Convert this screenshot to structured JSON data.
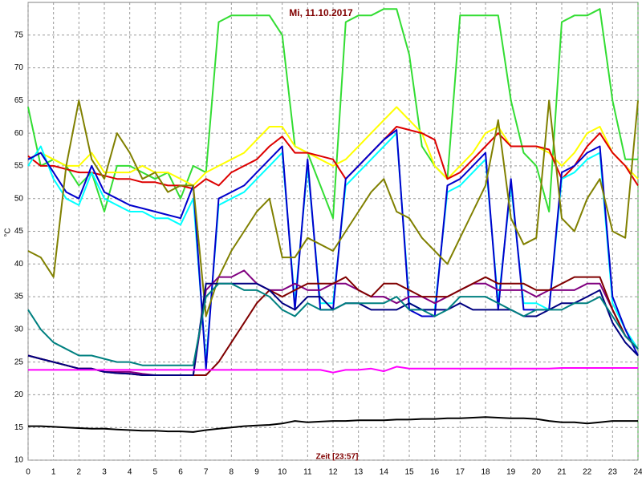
{
  "chart_data": {
    "type": "line",
    "title": "Mi, 11.10.2017",
    "x_label": "Zeit [23:57]",
    "y_label": "°C",
    "xlim": [
      0,
      24
    ],
    "ylim": [
      10,
      80
    ],
    "xticks": [
      0,
      1,
      2,
      3,
      4,
      5,
      6,
      7,
      8,
      9,
      10,
      11,
      12,
      13,
      14,
      15,
      16,
      17,
      18,
      19,
      20,
      21,
      22,
      23,
      24
    ],
    "yticks": [
      10,
      15,
      20,
      25,
      30,
      35,
      40,
      45,
      50,
      55,
      60,
      65,
      70,
      75
    ],
    "grid": true,
    "x": [
      0,
      0.5,
      1,
      1.5,
      2,
      2.5,
      3,
      3.5,
      4,
      4.5,
      5,
      5.5,
      6,
      6.5,
      7,
      7.5,
      8,
      8.5,
      9,
      9.5,
      10,
      10.5,
      11,
      11.5,
      12,
      12.5,
      13,
      13.5,
      14,
      14.5,
      15,
      15.5,
      16,
      16.5,
      17,
      17.5,
      18,
      18.5,
      19,
      19.5,
      20,
      20.5,
      21,
      21.5,
      22,
      22.5,
      23,
      23.5,
      24
    ],
    "series": [
      {
        "color": "#33dd33",
        "values": [
          64,
          55,
          56,
          55,
          52,
          54,
          48,
          55,
          55,
          54,
          53,
          54,
          50,
          55,
          54,
          77,
          78,
          78,
          78,
          78,
          75,
          58,
          57,
          52,
          47,
          77,
          78,
          78,
          79,
          79,
          72,
          58,
          55,
          53,
          78,
          78,
          78,
          78,
          65,
          57,
          55,
          48,
          77,
          78,
          78,
          79,
          65,
          56,
          56
        ]
      },
      {
        "color": "#ffff00",
        "values": [
          56,
          57,
          56,
          55,
          55,
          57,
          54,
          54,
          54,
          55,
          54,
          54,
          53,
          52,
          54,
          55,
          56,
          57,
          59,
          61,
          61,
          58,
          57,
          56,
          55,
          56,
          58,
          60,
          62,
          64,
          62,
          60,
          55,
          53,
          55,
          57,
          60,
          61,
          58,
          58,
          58,
          57,
          55,
          57,
          60,
          61,
          57,
          55,
          53
        ]
      },
      {
        "color": "#dd0000",
        "values": [
          56.5,
          55,
          55,
          54.5,
          54,
          54,
          53.5,
          53,
          53,
          52.5,
          52.5,
          52,
          52,
          51.5,
          53,
          52,
          54,
          55,
          56,
          58,
          59.5,
          57,
          57,
          56.5,
          56,
          53,
          55,
          57,
          59,
          61,
          60.5,
          60,
          59,
          53,
          54,
          56,
          58,
          60,
          58,
          58,
          58,
          57.5,
          53,
          55,
          58,
          60,
          57,
          55,
          52
        ]
      },
      {
        "color": "#00ffff",
        "values": [
          55,
          58,
          53,
          50,
          49,
          54,
          50,
          49,
          48,
          48,
          47,
          47,
          46,
          50,
          25,
          49,
          50,
          51,
          53,
          55,
          57,
          34,
          55,
          34,
          34,
          52,
          54,
          56,
          58,
          60,
          34,
          33,
          33,
          51,
          52,
          54,
          56,
          34,
          52,
          34,
          34,
          33,
          53,
          54,
          56,
          57,
          34,
          30,
          27
        ]
      },
      {
        "color": "#0000cc",
        "values": [
          56,
          57,
          54,
          51,
          50,
          55,
          51,
          50,
          49,
          48.5,
          48,
          47.5,
          47,
          52,
          24,
          50,
          51,
          52,
          54,
          56,
          58,
          33,
          56,
          33,
          33,
          53,
          55,
          57,
          59,
          60.5,
          33,
          32,
          32,
          52,
          53,
          55,
          57,
          33,
          53,
          33,
          33,
          33,
          54,
          55,
          57,
          58,
          35,
          30,
          26
        ]
      },
      {
        "color": "#808000",
        "values": [
          42,
          41,
          38,
          55,
          65,
          56,
          53,
          60,
          57,
          53,
          54,
          51,
          52,
          52,
          32,
          38,
          42,
          45,
          48,
          50,
          41,
          41,
          44,
          43,
          42,
          45,
          48,
          51,
          53,
          48,
          47,
          44,
          42,
          40,
          44,
          48,
          52,
          62,
          47,
          43,
          44,
          65,
          47,
          45,
          50,
          53,
          45,
          44,
          65
        ]
      },
      {
        "color": "#800080",
        "values": [
          26,
          25.5,
          25,
          24.5,
          24,
          24,
          23.5,
          23.5,
          23.5,
          23.2,
          23,
          23,
          23,
          23,
          36,
          38,
          38,
          39,
          37,
          36,
          36,
          37,
          36,
          36,
          37,
          37,
          36,
          35,
          35,
          34,
          35,
          35,
          34,
          35,
          36,
          37,
          37,
          36,
          36,
          36,
          35,
          36,
          36,
          36,
          37,
          37,
          33,
          29,
          27
        ]
      },
      {
        "color": "#800000",
        "values": [
          26,
          25.5,
          25,
          24.5,
          24,
          24,
          23.5,
          23.3,
          23.2,
          23,
          23,
          23,
          23,
          23,
          23,
          25,
          28,
          31,
          34,
          36,
          35,
          36,
          37,
          37,
          37,
          38,
          36,
          35,
          37,
          37,
          36,
          35,
          35,
          35,
          36,
          37,
          38,
          37,
          37,
          37,
          36,
          36,
          37,
          38,
          38,
          38,
          33,
          29,
          27
        ]
      },
      {
        "color": "#000080",
        "values": [
          26,
          25.5,
          25,
          24.5,
          24,
          24,
          23.5,
          23.3,
          23.2,
          23,
          23,
          23,
          23,
          23,
          37,
          37,
          37,
          37,
          37,
          36,
          34,
          33,
          35,
          35,
          33,
          34,
          34,
          33,
          33,
          33,
          34,
          33,
          33,
          33,
          34,
          33,
          33,
          33,
          33,
          32,
          32,
          33,
          34,
          34,
          35,
          36,
          31,
          28,
          26
        ]
      },
      {
        "color": "#008080",
        "values": [
          33,
          30,
          28,
          27,
          26,
          26,
          25.5,
          25,
          25,
          24.5,
          24.5,
          24.5,
          24.5,
          24.5,
          35,
          37,
          37,
          36,
          36,
          35,
          33,
          32,
          34,
          33,
          33,
          34,
          34,
          34,
          34,
          35,
          33,
          33,
          32,
          33,
          35,
          35,
          35,
          34,
          33,
          32,
          33,
          33,
          33,
          34,
          34,
          35,
          32,
          29,
          27
        ]
      },
      {
        "color": "#ff00ff",
        "values": [
          23.8,
          23.8,
          23.8,
          23.8,
          23.8,
          23.8,
          23.8,
          23.8,
          23.8,
          23.8,
          23.8,
          23.8,
          23.8,
          23.8,
          23.8,
          23.8,
          23.8,
          23.8,
          23.8,
          23.8,
          23.8,
          23.8,
          23.8,
          23.8,
          23.4,
          23.8,
          23.8,
          24,
          23.6,
          24.3,
          24,
          24,
          24,
          24,
          24,
          24,
          24,
          24,
          24,
          24,
          24,
          24,
          24.1,
          24.1,
          24.1,
          24.1,
          24.1,
          24.1,
          24.1
        ]
      },
      {
        "color": "#000000",
        "values": [
          15.2,
          15.2,
          15.1,
          15,
          14.9,
          14.8,
          14.8,
          14.7,
          14.6,
          14.5,
          14.5,
          14.4,
          14.4,
          14.3,
          14.6,
          14.8,
          15,
          15.2,
          15.3,
          15.4,
          15.6,
          16,
          15.8,
          15.9,
          16,
          16,
          16.1,
          16.1,
          16.1,
          16.2,
          16.2,
          16.3,
          16.3,
          16.4,
          16.4,
          16.5,
          16.6,
          16.5,
          16.4,
          16.4,
          16.3,
          16,
          15.8,
          15.8,
          15.6,
          15.8,
          16,
          16,
          16
        ]
      }
    ]
  }
}
